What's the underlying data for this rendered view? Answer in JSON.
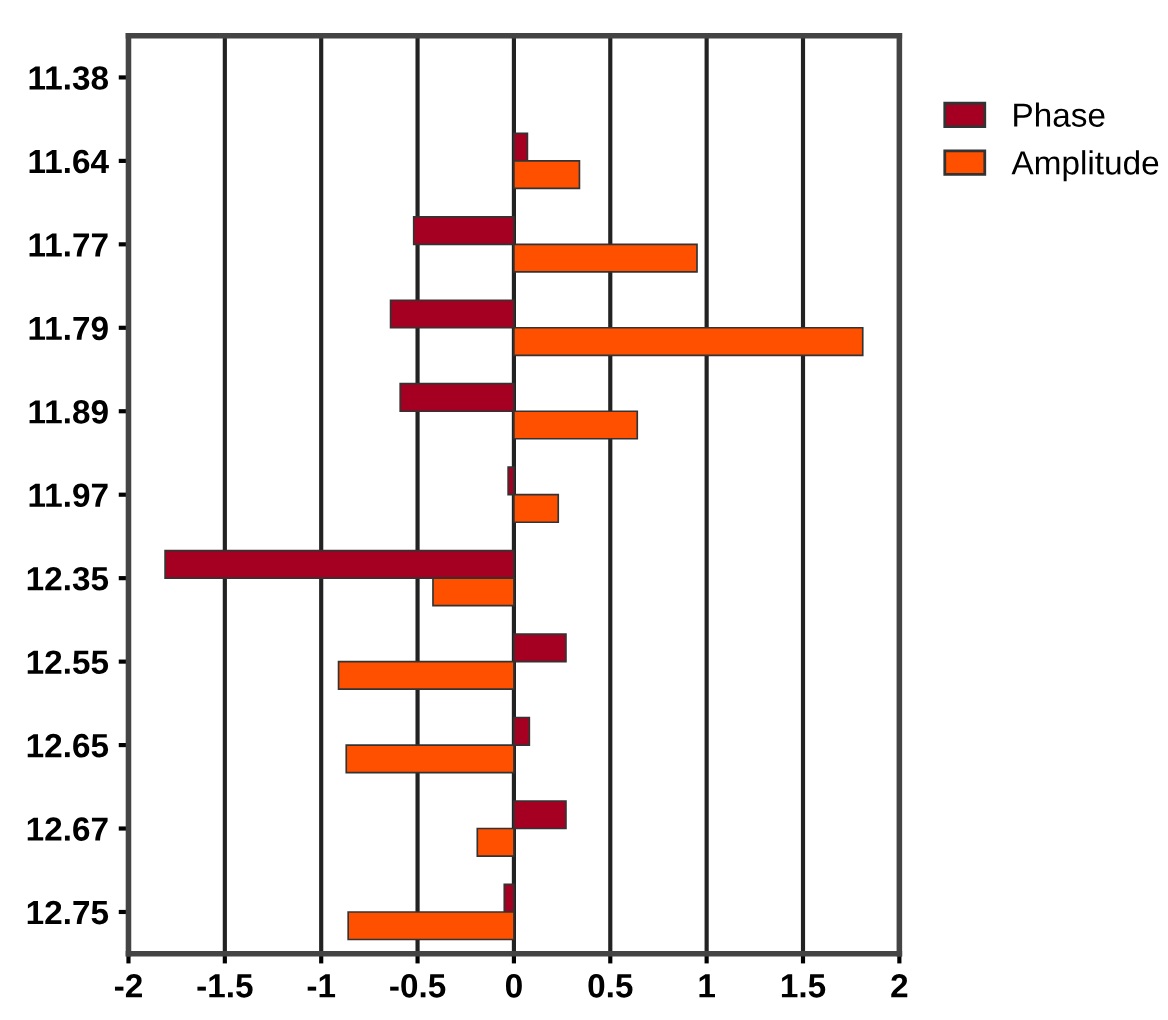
{
  "chart_data": {
    "type": "bar",
    "orientation": "horizontal",
    "categories": [
      "11.38",
      "11.64",
      "11.77",
      "11.79",
      "11.89",
      "11.97",
      "12.35",
      "12.55",
      "12.65",
      "12.67",
      "12.75"
    ],
    "series": [
      {
        "name": "Phase",
        "color": "#a50021",
        "values": [
          null,
          0.07,
          -0.52,
          -0.64,
          -0.59,
          -0.03,
          -1.81,
          0.27,
          0.08,
          0.27,
          -0.05
        ]
      },
      {
        "name": "Amplitude",
        "color": "#ff5000",
        "values": [
          null,
          0.34,
          0.95,
          1.81,
          0.64,
          0.23,
          -0.42,
          -0.91,
          -0.87,
          -0.19,
          -0.86
        ]
      }
    ],
    "xlim": [
      -2,
      2
    ],
    "xticks": [
      -2,
      -1.5,
      -1,
      -0.5,
      0,
      0.5,
      1,
      1.5,
      2
    ],
    "grid": "x",
    "legend": "right"
  }
}
